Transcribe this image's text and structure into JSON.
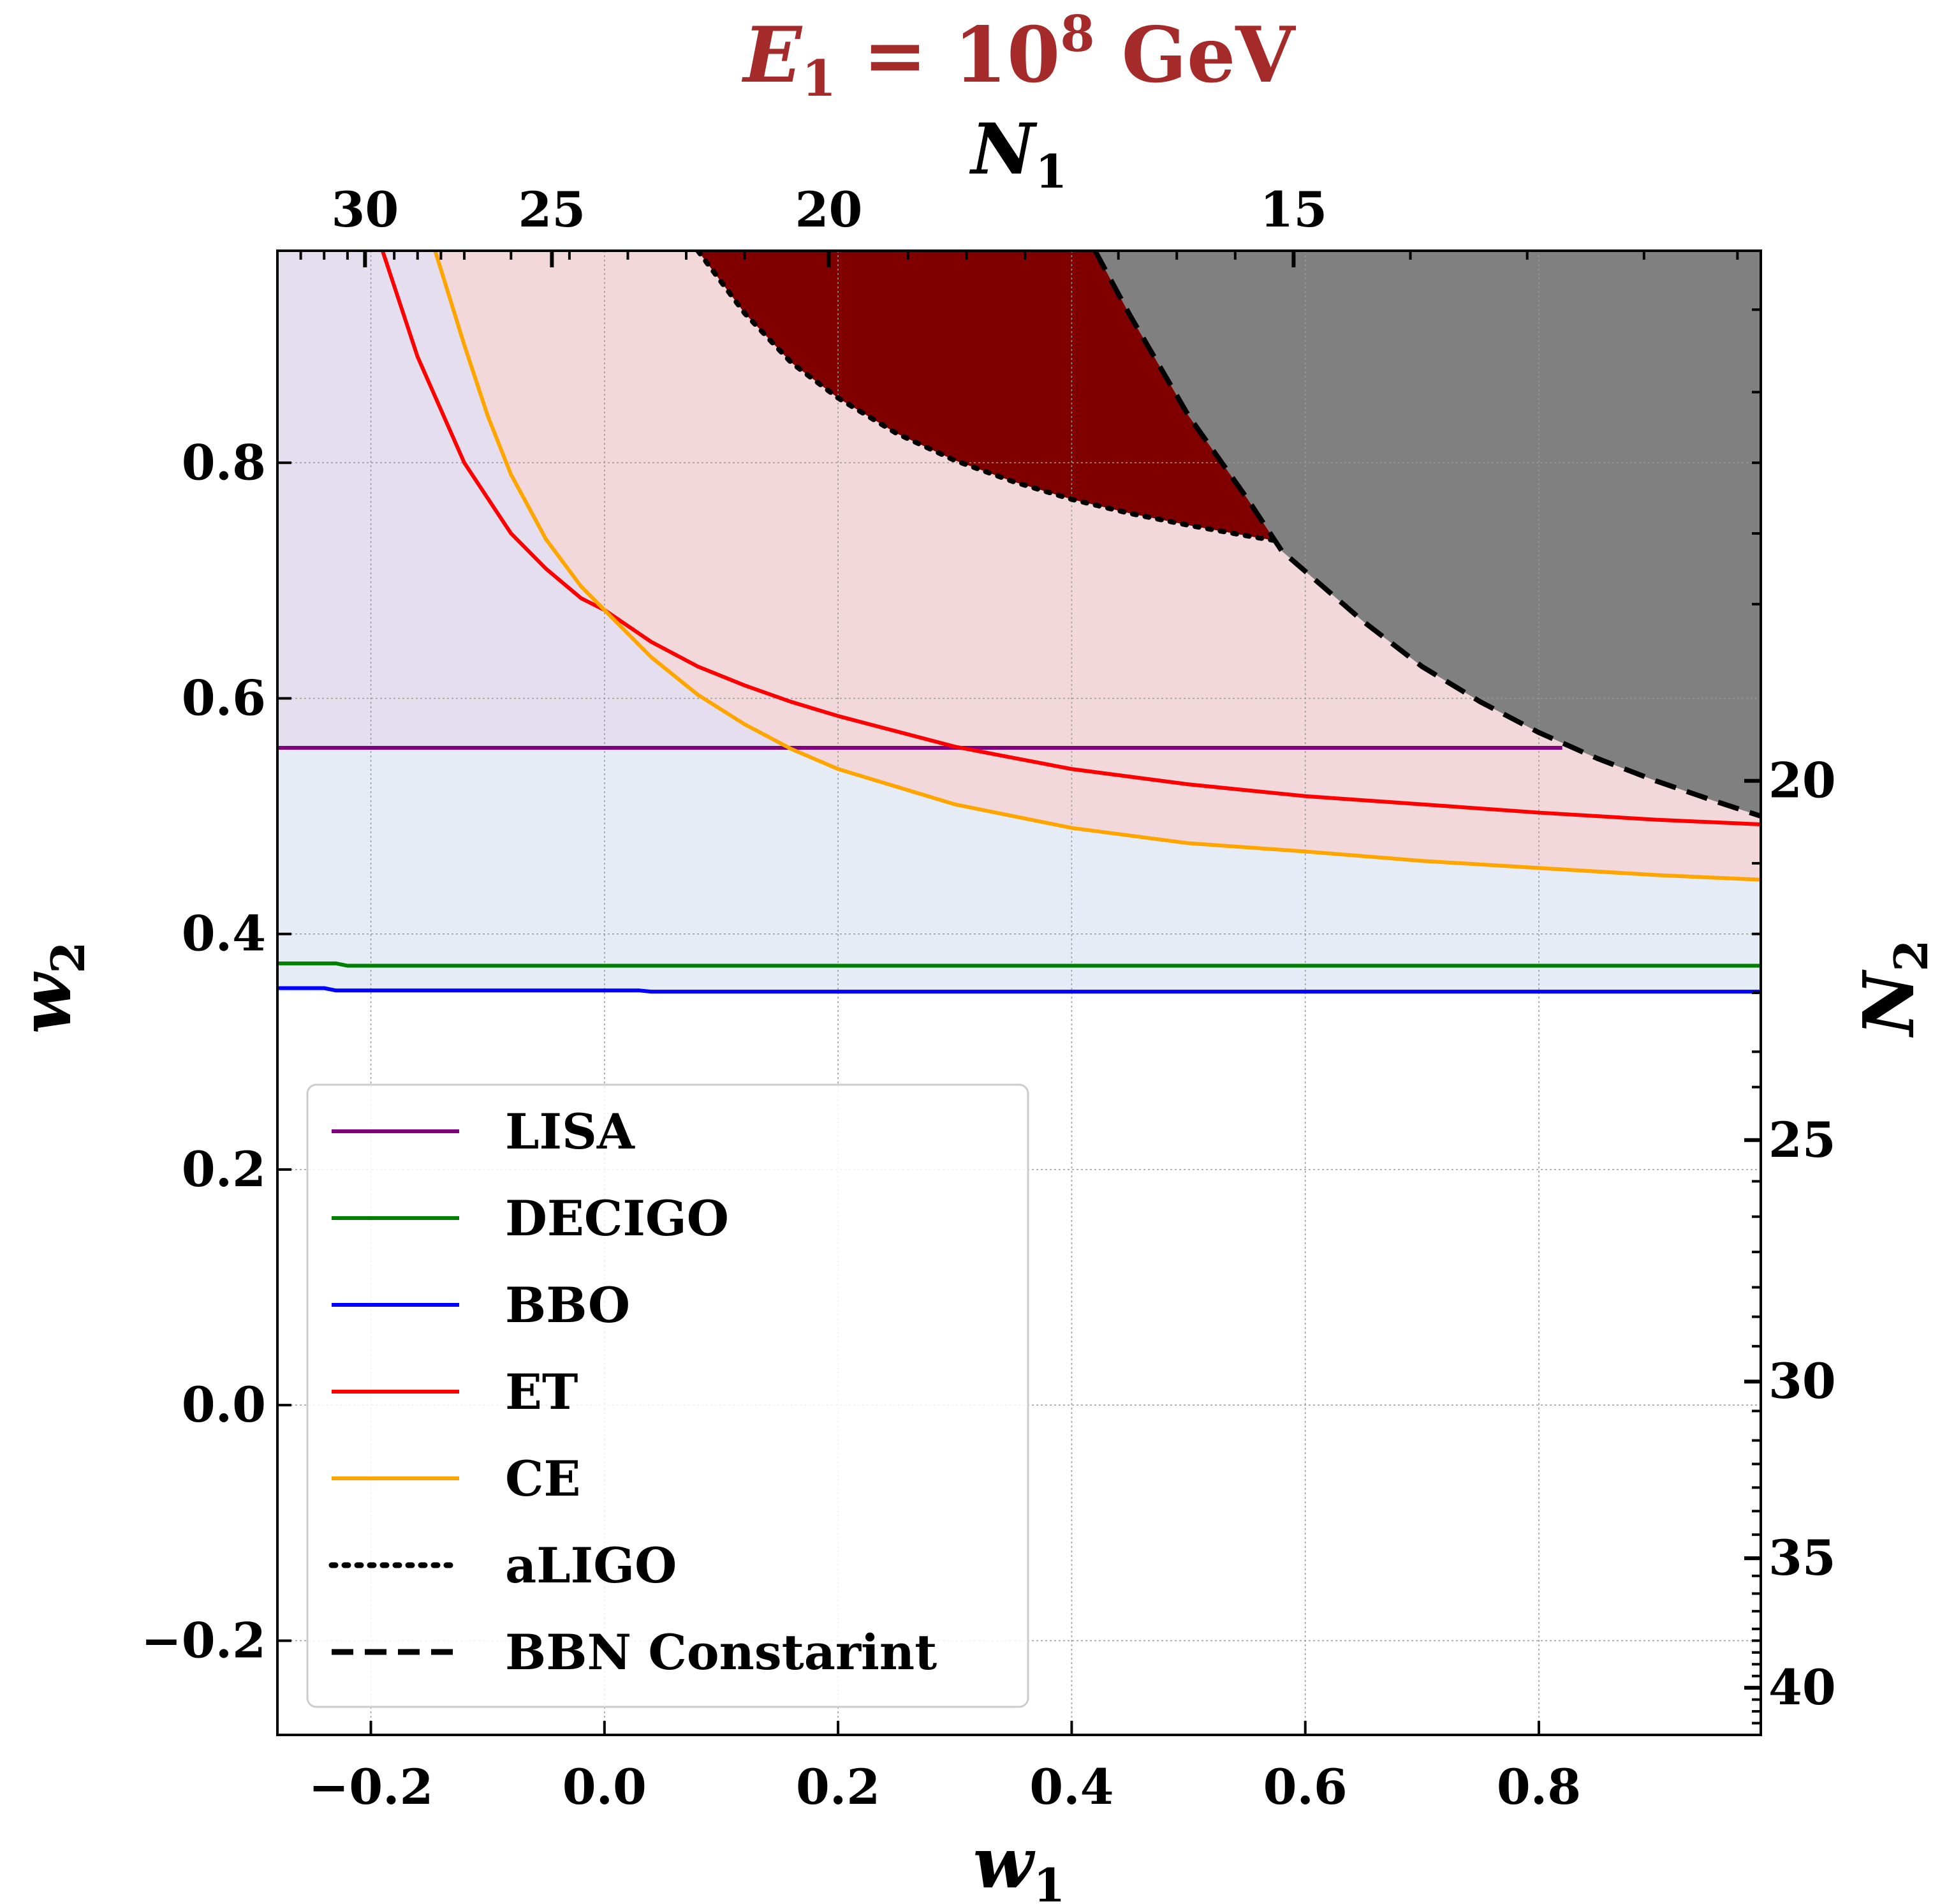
{
  "chart_data": {
    "type": "line",
    "title": "E",
    "title_sub": "1",
    "title_eq": " = 10",
    "title_sup": "8",
    "title_unit": " GeV",
    "title_color": "#a52a2a",
    "xlabel": "w",
    "xlabel_sub": "1",
    "ylabel": "w",
    "ylabel_sub": "2",
    "top_xlabel": "N",
    "top_xlabel_sub": "1",
    "right_ylabel": "N",
    "right_ylabel_sub": "2",
    "xlim": [
      -0.28,
      0.99
    ],
    "ylim": [
      -0.28,
      0.98
    ],
    "x_ticks": [
      -0.2,
      0.0,
      0.2,
      0.4,
      0.6,
      0.8
    ],
    "x_tick_labels": [
      "−0.2",
      "0.0",
      "0.2",
      "0.4",
      "0.6",
      "0.8"
    ],
    "y_ticks": [
      -0.2,
      0.0,
      0.2,
      0.4,
      0.6,
      0.8
    ],
    "y_tick_labels": [
      "−0.2",
      "0.0",
      "0.2",
      "0.4",
      "0.6",
      "0.8"
    ],
    "top_ticks": [
      {
        "w": -0.205,
        "label": "30"
      },
      {
        "w": -0.045,
        "label": "25"
      },
      {
        "w": 0.192,
        "label": "20"
      },
      {
        "w": 0.59,
        "label": "15"
      }
    ],
    "right_ticks": [
      {
        "w": 0.53,
        "label": "20"
      },
      {
        "w": 0.225,
        "label": "25"
      },
      {
        "w": 0.02,
        "label": "30"
      },
      {
        "w": -0.13,
        "label": "35"
      },
      {
        "w": -0.24,
        "label": "40"
      }
    ],
    "grid": true,
    "legend_position": "lower-left",
    "series": [
      {
        "name": "LISA",
        "color": "#800080",
        "style": "solid",
        "x": [
          -0.28,
          0.82
        ],
        "y": [
          0.558,
          0.558
        ]
      },
      {
        "name": "DECIGO",
        "color": "#008000",
        "style": "solid",
        "x": [
          -0.28,
          -0.23,
          -0.22,
          0.99
        ],
        "y": [
          0.375,
          0.375,
          0.373,
          0.373
        ]
      },
      {
        "name": "BBO",
        "color": "#0000ff",
        "style": "solid",
        "x": [
          -0.28,
          -0.24,
          -0.23,
          0.03,
          0.04,
          0.99
        ],
        "y": [
          0.354,
          0.354,
          0.352,
          0.352,
          0.351,
          0.351
        ]
      },
      {
        "name": "ET",
        "color": "#ff0000",
        "style": "solid",
        "x": [
          -0.19,
          -0.16,
          -0.12,
          -0.08,
          -0.05,
          -0.02,
          0.0,
          0.04,
          0.08,
          0.12,
          0.16,
          0.2,
          0.3,
          0.4,
          0.5,
          0.6,
          0.7,
          0.8,
          0.9,
          0.99
        ],
        "y": [
          0.98,
          0.89,
          0.8,
          0.74,
          0.71,
          0.685,
          0.675,
          0.648,
          0.627,
          0.611,
          0.597,
          0.585,
          0.559,
          0.54,
          0.527,
          0.517,
          0.51,
          0.503,
          0.497,
          0.493
        ]
      },
      {
        "name": "CE",
        "color": "#ffa500",
        "style": "solid",
        "x": [
          -0.145,
          -0.12,
          -0.1,
          -0.08,
          -0.05,
          -0.02,
          0.0,
          0.04,
          0.08,
          0.12,
          0.16,
          0.2,
          0.3,
          0.4,
          0.5,
          0.6,
          0.7,
          0.8,
          0.9,
          0.99
        ],
        "y": [
          0.98,
          0.9,
          0.84,
          0.79,
          0.735,
          0.695,
          0.675,
          0.635,
          0.603,
          0.578,
          0.557,
          0.54,
          0.51,
          0.49,
          0.477,
          0.47,
          0.462,
          0.456,
          0.45,
          0.446
        ]
      },
      {
        "name": "aLIGO",
        "color": "#000000",
        "style": "dotted",
        "x": [
          0.08,
          0.12,
          0.16,
          0.2,
          0.25,
          0.3,
          0.35,
          0.4,
          0.45,
          0.5,
          0.55,
          0.58
        ],
        "y": [
          0.98,
          0.927,
          0.885,
          0.855,
          0.825,
          0.802,
          0.784,
          0.769,
          0.757,
          0.747,
          0.738,
          0.733
        ]
      },
      {
        "name": "BBN Constarint",
        "color": "#000000",
        "style": "dashed",
        "x": [
          0.42,
          0.45,
          0.5,
          0.55,
          0.58,
          0.65,
          0.7,
          0.75,
          0.8,
          0.85,
          0.9,
          0.95,
          0.99
        ],
        "y": [
          0.98,
          0.925,
          0.84,
          0.77,
          0.725,
          0.665,
          0.627,
          0.597,
          0.571,
          0.549,
          0.53,
          0.513,
          0.5
        ]
      }
    ],
    "regions": [
      {
        "name": "ET/CE region",
        "color": "#f2d8da"
      },
      {
        "name": "LISA region",
        "color": "#e4deee"
      },
      {
        "name": "DECIGO/BBO region",
        "color": "#e6ecf5"
      },
      {
        "name": "aLIGO region",
        "color": "#800000"
      },
      {
        "name": "BBN excluded region",
        "color": "#808080"
      }
    ]
  }
}
